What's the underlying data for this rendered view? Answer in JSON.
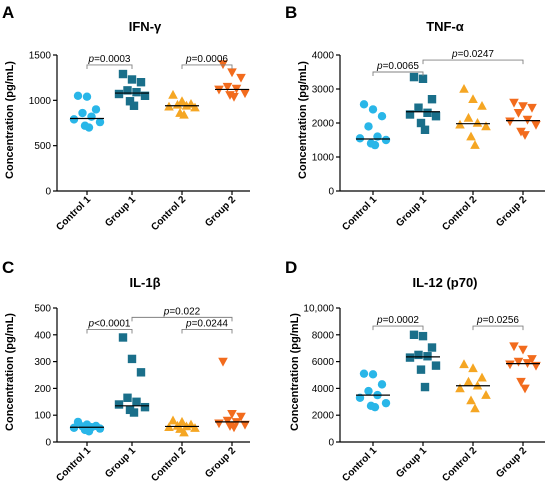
{
  "chart_data": [
    {
      "type": "scatter",
      "panel_label": "A",
      "title": "IFN-γ",
      "ylabel": "Concentration (pg/mL)",
      "ylim": [
        0,
        1500
      ],
      "yticks": [
        "0",
        "500",
        "1000",
        "1500"
      ],
      "ytick_values": [
        0,
        500,
        1000,
        1500
      ],
      "categories": [
        "Control 1",
        "Group 1",
        "Control 2",
        "Group 2"
      ],
      "series": [
        {
          "category": "Control 1",
          "marker": "circle",
          "color": "#29b6e8",
          "median": 800,
          "values": [
            1050,
            1040,
            900,
            860,
            820,
            790,
            760,
            720,
            700
          ]
        },
        {
          "category": "Group 1",
          "marker": "square",
          "color": "#1a6f8a",
          "median": 1080,
          "values": [
            1290,
            1230,
            1200,
            1110,
            1090,
            1070,
            1050,
            990,
            940
          ]
        },
        {
          "category": "Control 2",
          "marker": "triangle-up",
          "color": "#f5a623",
          "median": 940,
          "values": [
            1060,
            990,
            960,
            950,
            940,
            930,
            920,
            860,
            840
          ]
        },
        {
          "category": "Group 2",
          "marker": "triangle-down",
          "color": "#f26b1d",
          "median": 1120,
          "values": [
            1400,
            1310,
            1250,
            1150,
            1130,
            1120,
            1080,
            1060,
            1040
          ]
        }
      ],
      "comparisons": [
        {
          "from": 0,
          "to": 1,
          "label": "p=0.0003",
          "y": 1390
        },
        {
          "from": 2,
          "to": 3,
          "label": "p=0.0006",
          "y": 1390
        }
      ]
    },
    {
      "type": "scatter",
      "panel_label": "B",
      "title": "TNF-α",
      "ylabel": "Concentration (pg/mL)",
      "ylim": [
        0,
        4000
      ],
      "yticks": [
        "0",
        "1000",
        "2000",
        "3000",
        "4000"
      ],
      "ytick_values": [
        0,
        1000,
        2000,
        3000,
        4000
      ],
      "categories": [
        "Control 1",
        "Group 1",
        "Control 2",
        "Group 2"
      ],
      "series": [
        {
          "category": "Control 1",
          "marker": "circle",
          "color": "#29b6e8",
          "median": 1530,
          "values": [
            2550,
            2400,
            2200,
            1900,
            1600,
            1550,
            1500,
            1400,
            1350
          ]
        },
        {
          "category": "Group 1",
          "marker": "square",
          "color": "#1a6f8a",
          "median": 2330,
          "values": [
            3350,
            3300,
            2700,
            2450,
            2300,
            2250,
            2200,
            2000,
            1800
          ]
        },
        {
          "category": "Control 2",
          "marker": "triangle-up",
          "color": "#f5a623",
          "median": 1980,
          "values": [
            3000,
            2700,
            2500,
            2150,
            2000,
            1950,
            1900,
            1600,
            1350
          ]
        },
        {
          "category": "Group 2",
          "marker": "triangle-down",
          "color": "#f26b1d",
          "median": 2070,
          "values": [
            2600,
            2500,
            2450,
            2300,
            2100,
            2050,
            1950,
            1750,
            1650
          ]
        }
      ],
      "comparisons": [
        {
          "from": 0,
          "to": 1,
          "label": "p=0.0065",
          "y": 3500
        },
        {
          "from": 1,
          "to": 3,
          "label": "p=0.0247",
          "y": 3850
        }
      ]
    },
    {
      "type": "scatter",
      "panel_label": "C",
      "title": "IL-1β",
      "ylabel": "Concentration (pg/mL)",
      "ylim": [
        0,
        500
      ],
      "yticks": [
        "0",
        "100",
        "200",
        "300",
        "400",
        "500"
      ],
      "ytick_values": [
        0,
        100,
        200,
        300,
        400,
        500
      ],
      "categories": [
        "Control 1",
        "Group 1",
        "Control 2",
        "Group 2"
      ],
      "series": [
        {
          "category": "Control 1",
          "marker": "circle",
          "color": "#29b6e8",
          "median": 55,
          "values": [
            75,
            65,
            60,
            58,
            55,
            53,
            50,
            45,
            40
          ]
        },
        {
          "category": "Group 1",
          "marker": "square",
          "color": "#1a6f8a",
          "median": 135,
          "values": [
            390,
            310,
            260,
            165,
            150,
            140,
            130,
            120,
            110
          ]
        },
        {
          "category": "Control 2",
          "marker": "triangle-up",
          "color": "#f5a623",
          "median": 58,
          "values": [
            80,
            75,
            65,
            60,
            58,
            55,
            52,
            48,
            35
          ]
        },
        {
          "category": "Group 2",
          "marker": "triangle-down",
          "color": "#f26b1d",
          "median": 75,
          "values": [
            300,
            105,
            95,
            80,
            75,
            70,
            65,
            60,
            55
          ]
        }
      ],
      "comparisons": [
        {
          "from": 0,
          "to": 1,
          "label": "p<0.0001",
          "y": 420
        },
        {
          "from": 2,
          "to": 3,
          "label": "p=0.0244",
          "y": 420
        },
        {
          "from": 1,
          "to": 3,
          "label": "p=0.022",
          "y": 465
        }
      ]
    },
    {
      "type": "scatter",
      "panel_label": "D",
      "title": "IL-12 (p70)",
      "ylabel": "Concentration (pg/mL)",
      "ylim": [
        0,
        10000
      ],
      "yticks": [
        "0",
        "2000",
        "4000",
        "6000",
        "8000",
        "10,000"
      ],
      "ytick_values": [
        0,
        2000,
        4000,
        6000,
        8000,
        10000
      ],
      "categories": [
        "Control 1",
        "Group 1",
        "Control 2",
        "Group 2"
      ],
      "series": [
        {
          "category": "Control 1",
          "marker": "circle",
          "color": "#29b6e8",
          "median": 3500,
          "values": [
            5100,
            5050,
            4300,
            3800,
            3500,
            3300,
            2900,
            2700,
            2600
          ]
        },
        {
          "category": "Group 1",
          "marker": "square",
          "color": "#1a6f8a",
          "median": 6350,
          "values": [
            8000,
            7900,
            7050,
            6500,
            6400,
            6300,
            5700,
            5400,
            4100
          ]
        },
        {
          "category": "Control 2",
          "marker": "triangle-up",
          "color": "#f5a623",
          "median": 4200,
          "values": [
            5800,
            5500,
            4800,
            4500,
            4200,
            4000,
            3500,
            3100,
            2500
          ]
        },
        {
          "category": "Group 2",
          "marker": "triangle-down",
          "color": "#f26b1d",
          "median": 5850,
          "values": [
            7150,
            6900,
            6200,
            6000,
            5900,
            5800,
            5700,
            4500,
            4000
          ]
        }
      ],
      "comparisons": [
        {
          "from": 0,
          "to": 1,
          "label": "p=0.0002",
          "y": 8650
        },
        {
          "from": 2,
          "to": 3,
          "label": "p=0.0256",
          "y": 8650
        }
      ]
    }
  ]
}
